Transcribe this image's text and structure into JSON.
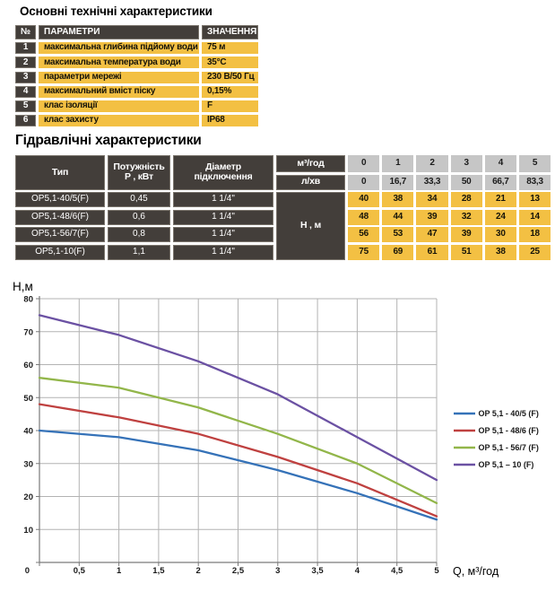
{
  "colors": {
    "dark_cell": "#433e3a",
    "accent_yellow": "#f3c043",
    "gray_cell": "#c6c6c6",
    "grid_line": "#b3b3b3",
    "axis_line": "#7a7a7a"
  },
  "tech_table": {
    "title": "Основні технічні характеристики",
    "headers": {
      "num": "№",
      "param": "ПАРАМЕТРИ",
      "value": "ЗНАЧЕННЯ"
    },
    "rows": [
      {
        "num": "1",
        "param": "максимальна глибина підйому води",
        "value": "75 м"
      },
      {
        "num": "2",
        "param": "максимальна температура води",
        "value": "35°С"
      },
      {
        "num": "3",
        "param": "параметри мережі",
        "value": "230 В/50 Гц"
      },
      {
        "num": "4",
        "param": "максимальний вміст піску",
        "value": "0,15%"
      },
      {
        "num": "5",
        "param": "клас ізоляції",
        "value": "F"
      },
      {
        "num": "6",
        "param": "клас захисту",
        "value": "IP68"
      }
    ]
  },
  "hydraulic_table": {
    "title": "Гідравлічні характеристики",
    "col_headers": {
      "type": "Тип",
      "power_l1": "Потужність",
      "power_l2": "P , кВт",
      "diameter_l1": "Діаметр",
      "diameter_l2": "підключення",
      "flow_m3": "м³/год",
      "flow_l": "л/хв",
      "head": "Н , м"
    },
    "flow_m3_values": [
      "0",
      "1",
      "2",
      "3",
      "4",
      "5"
    ],
    "flow_l_values": [
      "0",
      "16,7",
      "33,3",
      "50",
      "66,7",
      "83,3"
    ],
    "rows": [
      {
        "type": "OP5,1-40/5(F)",
        "power": "0,45",
        "diameter": "1 1/4\"",
        "head": [
          "40",
          "38",
          "34",
          "28",
          "21",
          "13"
        ]
      },
      {
        "type": "OP5,1-48/6(F)",
        "power": "0,6",
        "diameter": "1 1/4\"",
        "head": [
          "48",
          "44",
          "39",
          "32",
          "24",
          "14"
        ]
      },
      {
        "type": "OP5,1-56/7(F)",
        "power": "0,8",
        "diameter": "1 1/4\"",
        "head": [
          "56",
          "53",
          "47",
          "39",
          "30",
          "18"
        ]
      },
      {
        "type": "OP5,1-10(F)",
        "power": "1,1",
        "diameter": "1 1/4\"",
        "head": [
          "75",
          "69",
          "61",
          "51",
          "38",
          "25"
        ]
      }
    ]
  },
  "chart_data": {
    "type": "line",
    "title": "",
    "xlabel": "Q,  м³/год",
    "ylabel": "H,м",
    "x": [
      0,
      1,
      2,
      3,
      4,
      5
    ],
    "series": [
      {
        "name": "OP 5,1 - 40/5 (F)",
        "color": "#3572b8",
        "values": [
          40,
          38,
          34,
          28,
          21,
          13
        ]
      },
      {
        "name": "OP 5,1 - 48/6 (F)",
        "color": "#bf4140",
        "values": [
          48,
          44,
          39,
          32,
          24,
          14
        ]
      },
      {
        "name": "OP 5,1 - 56/7 (F)",
        "color": "#92b64a",
        "values": [
          56,
          53,
          47,
          39,
          30,
          18
        ]
      },
      {
        "name": "OP 5,1 – 10 (F)",
        "color": "#6b51a3",
        "values": [
          75,
          69,
          61,
          51,
          38,
          25
        ]
      }
    ],
    "xlim": [
      0,
      5
    ],
    "ylim": [
      0,
      80
    ],
    "x_tick_step": 0.5,
    "y_tick_step": 10,
    "grid": true,
    "legend_position": "right"
  }
}
